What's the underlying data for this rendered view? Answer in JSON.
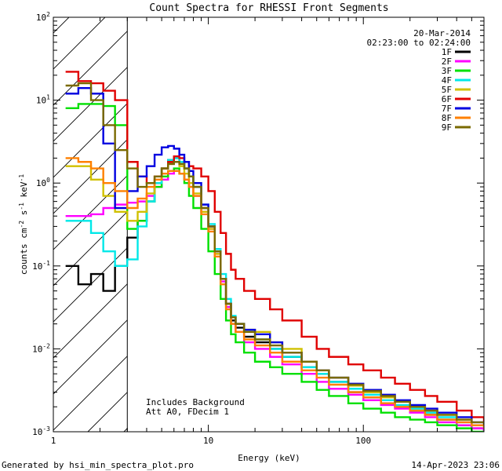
{
  "chart_data": {
    "type": "line",
    "title": "Count Spectra for RHESSI Front Segments",
    "xlabel": "Energy (keV)",
    "ylabel_parts": [
      "counts cm",
      "-2",
      " s",
      "-1",
      " keV",
      "-1"
    ],
    "xscale": "log",
    "yscale": "log",
    "xlim": [
      1,
      600
    ],
    "ylim": [
      0.001,
      100
    ],
    "x_ticks": [
      {
        "value": 1,
        "label": "1"
      },
      {
        "value": 10,
        "label": "10"
      },
      {
        "value": 100,
        "label": "100"
      }
    ],
    "y_ticks": [
      {
        "value": 0.001,
        "base": "10",
        "exp": "-3"
      },
      {
        "value": 0.01,
        "base": "10",
        "exp": "-2"
      },
      {
        "value": 0.1,
        "base": "10",
        "exp": "-1"
      },
      {
        "value": 1,
        "base": "10",
        "exp": "0"
      },
      {
        "value": 10,
        "base": "10",
        "exp": "1"
      },
      {
        "value": 100,
        "base": "10",
        "exp": "2"
      }
    ],
    "date": "20-Mar-2014",
    "time_range": "02:23:00 to 02:24:00",
    "excluded_region_max_kev": 3,
    "notes": [
      "Includes Background",
      "Att A0, FDecim 1"
    ],
    "legend_position": "top-right",
    "x": [
      1.2,
      1.45,
      1.75,
      2.1,
      2.5,
      3.0,
      3.5,
      4.0,
      4.5,
      5.0,
      5.5,
      6.0,
      6.5,
      7.0,
      7.5,
      8.0,
      9.0,
      10.0,
      11.0,
      12.0,
      13.0,
      14.0,
      15.0,
      17.0,
      20.0,
      25.0,
      30.0,
      40.0,
      50.0,
      60.0,
      80.0,
      100.0,
      130.0,
      160.0,
      200.0,
      250.0,
      300.0,
      400.0,
      500.0,
      600.0
    ],
    "series": [
      {
        "name": "1F",
        "color": "#000000",
        "values": [
          0.1,
          0.06,
          0.08,
          0.05,
          0.1,
          0.22,
          0.35,
          0.6,
          1.0,
          1.5,
          1.9,
          2.0,
          1.8,
          1.5,
          1.2,
          0.9,
          0.5,
          0.3,
          0.15,
          0.07,
          0.035,
          0.022,
          0.018,
          0.014,
          0.012,
          0.01,
          0.008,
          0.006,
          0.005,
          0.004,
          0.003,
          0.0026,
          0.0022,
          0.002,
          0.0018,
          0.0016,
          0.0014,
          0.0012,
          0.0011,
          0.001
        ]
      },
      {
        "name": "2F",
        "color": "#ff00ff",
        "values": [
          0.4,
          0.4,
          0.42,
          0.5,
          0.55,
          0.58,
          0.6,
          0.7,
          0.9,
          1.1,
          1.3,
          1.4,
          1.3,
          1.1,
          0.9,
          0.7,
          0.45,
          0.28,
          0.14,
          0.065,
          0.032,
          0.02,
          0.016,
          0.012,
          0.01,
          0.008,
          0.0065,
          0.005,
          0.004,
          0.0033,
          0.0028,
          0.0024,
          0.0021,
          0.0019,
          0.0017,
          0.0015,
          0.0013,
          0.0012,
          0.0011,
          0.001
        ]
      },
      {
        "name": "3F",
        "color": "#00e000",
        "values": [
          8.0,
          9.0,
          9.0,
          8.5,
          5.0,
          0.28,
          0.35,
          0.6,
          0.9,
          1.2,
          1.4,
          1.5,
          1.3,
          1.0,
          0.7,
          0.5,
          0.28,
          0.15,
          0.08,
          0.04,
          0.022,
          0.015,
          0.012,
          0.009,
          0.007,
          0.006,
          0.005,
          0.004,
          0.0032,
          0.0027,
          0.0022,
          0.0019,
          0.0017,
          0.0015,
          0.0014,
          0.0013,
          0.0012,
          0.0011,
          0.001,
          0.001
        ]
      },
      {
        "name": "4F",
        "color": "#00e8e8",
        "values": [
          0.35,
          0.35,
          0.25,
          0.15,
          0.1,
          0.12,
          0.3,
          0.6,
          1.0,
          1.5,
          1.9,
          2.0,
          1.8,
          1.5,
          1.2,
          0.9,
          0.55,
          0.32,
          0.16,
          0.08,
          0.04,
          0.025,
          0.02,
          0.016,
          0.013,
          0.01,
          0.008,
          0.006,
          0.005,
          0.004,
          0.0033,
          0.0028,
          0.0024,
          0.0021,
          0.0019,
          0.0017,
          0.0015,
          0.0013,
          0.0012,
          0.0011
        ]
      },
      {
        "name": "5F",
        "color": "#d0c000",
        "values": [
          1.6,
          1.6,
          1.1,
          0.7,
          0.45,
          0.35,
          0.45,
          0.75,
          1.1,
          1.5,
          1.7,
          1.8,
          1.6,
          1.3,
          1.0,
          0.75,
          0.45,
          0.28,
          0.14,
          0.07,
          0.035,
          0.024,
          0.02,
          0.017,
          0.016,
          0.012,
          0.01,
          0.007,
          0.0055,
          0.0045,
          0.0036,
          0.003,
          0.0026,
          0.0023,
          0.002,
          0.0018,
          0.0016,
          0.0014,
          0.0012,
          0.0011
        ]
      },
      {
        "name": "6F",
        "color": "#e00000",
        "values": [
          22.0,
          17.0,
          16.0,
          13.0,
          10.0,
          1.8,
          1.2,
          1.0,
          1.2,
          1.5,
          1.8,
          2.1,
          2.0,
          1.8,
          1.6,
          1.5,
          1.2,
          0.8,
          0.45,
          0.25,
          0.14,
          0.09,
          0.07,
          0.05,
          0.04,
          0.03,
          0.022,
          0.014,
          0.01,
          0.008,
          0.0065,
          0.0055,
          0.0045,
          0.0038,
          0.0032,
          0.0027,
          0.0023,
          0.0018,
          0.0015,
          0.0013
        ]
      },
      {
        "name": "7F",
        "color": "#0000e0",
        "values": [
          12.0,
          14.0,
          12.0,
          3.0,
          0.5,
          0.8,
          1.2,
          1.6,
          2.2,
          2.7,
          2.8,
          2.6,
          2.2,
          1.8,
          1.4,
          1.0,
          0.55,
          0.3,
          0.15,
          0.07,
          0.035,
          0.024,
          0.02,
          0.017,
          0.015,
          0.012,
          0.009,
          0.007,
          0.0055,
          0.0045,
          0.0038,
          0.0032,
          0.0028,
          0.0024,
          0.0021,
          0.0019,
          0.0017,
          0.0015,
          0.0013,
          0.0012
        ]
      },
      {
        "name": "8F",
        "color": "#ff8000",
        "values": [
          2.0,
          1.8,
          1.5,
          1.0,
          0.8,
          0.5,
          0.65,
          0.9,
          1.1,
          1.3,
          1.4,
          1.4,
          1.3,
          1.1,
          0.9,
          0.7,
          0.42,
          0.26,
          0.13,
          0.06,
          0.03,
          0.02,
          0.016,
          0.013,
          0.011,
          0.009,
          0.007,
          0.0055,
          0.0045,
          0.0037,
          0.003,
          0.0026,
          0.0022,
          0.002,
          0.0018,
          0.0016,
          0.0014,
          0.0013,
          0.0012,
          0.0011
        ]
      },
      {
        "name": "9F",
        "color": "#7a6a00",
        "values": [
          15.0,
          16.0,
          10.0,
          5.0,
          2.5,
          1.5,
          0.9,
          1.0,
          1.2,
          1.5,
          1.7,
          1.8,
          1.7,
          1.5,
          1.2,
          0.9,
          0.5,
          0.3,
          0.15,
          0.07,
          0.035,
          0.024,
          0.02,
          0.016,
          0.013,
          0.011,
          0.009,
          0.007,
          0.0055,
          0.0045,
          0.0037,
          0.0031,
          0.0027,
          0.0023,
          0.002,
          0.0018,
          0.0016,
          0.0014,
          0.0013,
          0.0012
        ]
      }
    ]
  },
  "footer": {
    "generated_by": "Generated by hsi_min_spectra_plot.pro",
    "date": "14-Apr-2023 23:06"
  }
}
